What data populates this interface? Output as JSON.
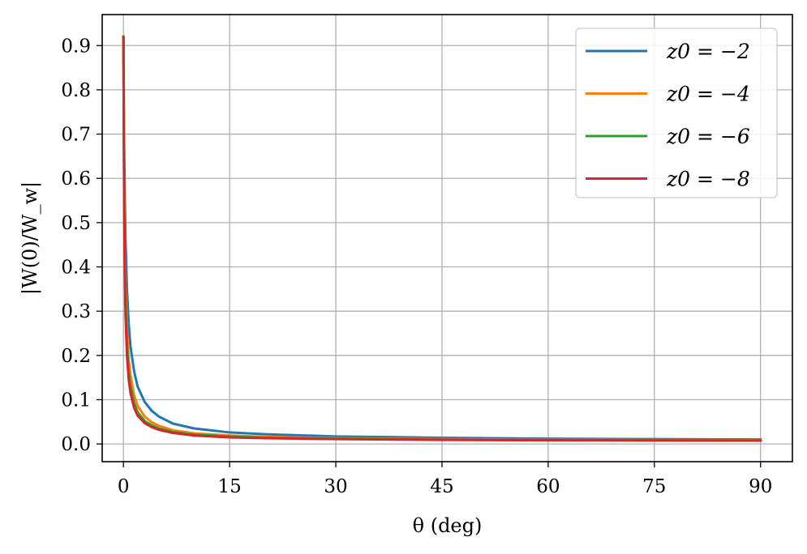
{
  "chart_data": {
    "type": "line",
    "xlabel": "θ (deg)",
    "ylabel": "|W(0)/W_w|",
    "xlim": [
      -3,
      94.5
    ],
    "ylim": [
      -0.04,
      0.97
    ],
    "xticks": [
      0,
      15,
      30,
      45,
      60,
      75,
      90
    ],
    "xtick_labels": [
      "0",
      "15",
      "30",
      "45",
      "60",
      "75",
      "90"
    ],
    "yticks": [
      0.0,
      0.1,
      0.2,
      0.3,
      0.4,
      0.5,
      0.6,
      0.7,
      0.8,
      0.9
    ],
    "ytick_labels": [
      "0.0",
      "0.1",
      "0.2",
      "0.3",
      "0.4",
      "0.5",
      "0.6",
      "0.7",
      "0.8",
      "0.9"
    ],
    "grid": true,
    "legend": {
      "position": "top-right"
    },
    "series": [
      {
        "name": "z0 = −2",
        "color": "#1f77b4",
        "x": [
          0.0,
          0.1,
          0.2,
          0.3,
          0.5,
          0.75,
          1,
          1.5,
          2,
          3,
          4,
          5,
          7,
          10,
          15,
          20,
          30,
          45,
          60,
          75,
          90
        ],
        "y": [
          0.92,
          0.68,
          0.55,
          0.46,
          0.35,
          0.27,
          0.22,
          0.165,
          0.13,
          0.095,
          0.075,
          0.062,
          0.046,
          0.035,
          0.026,
          0.022,
          0.017,
          0.014,
          0.012,
          0.011,
          0.01
        ]
      },
      {
        "name": "z0 = −4",
        "color": "#ff7f0e",
        "x": [
          0.0,
          0.1,
          0.2,
          0.3,
          0.5,
          0.75,
          1,
          1.5,
          2,
          3,
          4,
          5,
          7,
          10,
          15,
          20,
          30,
          45,
          60,
          75,
          90
        ],
        "y": [
          0.92,
          0.6,
          0.45,
          0.36,
          0.26,
          0.19,
          0.155,
          0.11,
          0.086,
          0.062,
          0.049,
          0.041,
          0.031,
          0.024,
          0.019,
          0.016,
          0.013,
          0.011,
          0.0095,
          0.009,
          0.0085
        ]
      },
      {
        "name": "z0 = −6",
        "color": "#2ca02c",
        "x": [
          0.0,
          0.1,
          0.2,
          0.3,
          0.5,
          0.75,
          1,
          1.5,
          2,
          3,
          4,
          5,
          7,
          10,
          15,
          20,
          30,
          45,
          60,
          75,
          90
        ],
        "y": [
          0.92,
          0.56,
          0.41,
          0.32,
          0.22,
          0.16,
          0.13,
          0.092,
          0.072,
          0.052,
          0.042,
          0.035,
          0.027,
          0.021,
          0.017,
          0.014,
          0.012,
          0.0098,
          0.0088,
          0.0083,
          0.008
        ]
      },
      {
        "name": "z0 = −8",
        "color": "#d62728",
        "x": [
          0.0,
          0.1,
          0.2,
          0.3,
          0.5,
          0.75,
          1,
          1.5,
          2,
          3,
          4,
          5,
          7,
          10,
          15,
          20,
          30,
          45,
          60,
          75,
          90
        ],
        "y": [
          0.92,
          0.53,
          0.38,
          0.29,
          0.2,
          0.145,
          0.115,
          0.082,
          0.064,
          0.047,
          0.038,
          0.032,
          0.025,
          0.019,
          0.015,
          0.013,
          0.011,
          0.0092,
          0.0083,
          0.0078,
          0.0075
        ]
      }
    ]
  }
}
